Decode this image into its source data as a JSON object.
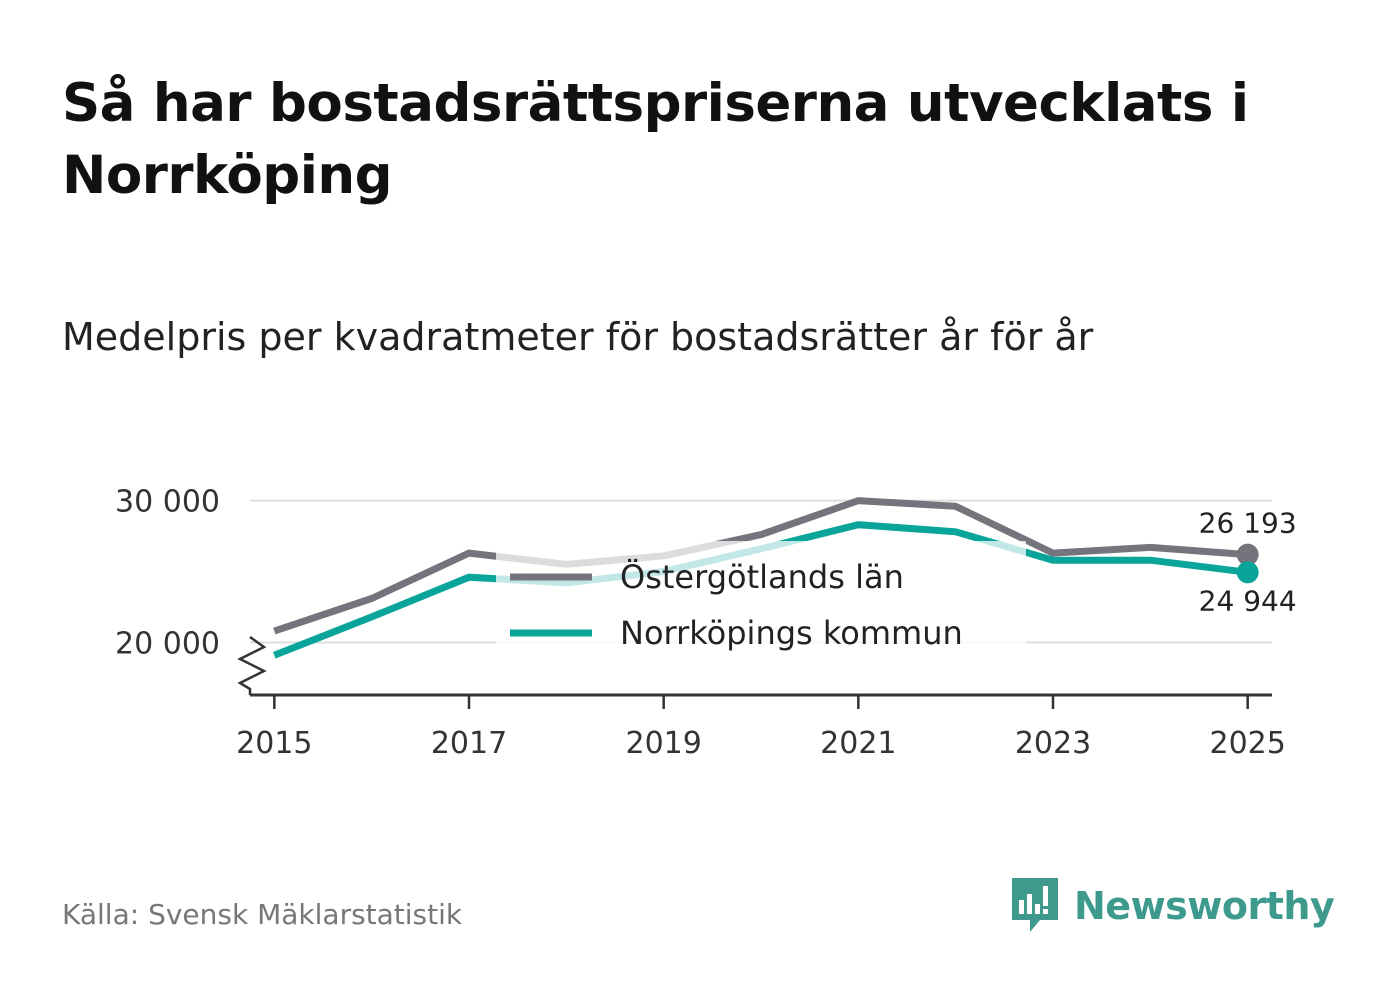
{
  "title": "Så har bostadsrättspriserna utvecklats i Norrköping",
  "subtitle": "Medelpris per kvadratmeter för bostadsrätter år för år",
  "source": "Källa: Svensk Mäklarstatistik",
  "brand": {
    "name": "Newsworthy",
    "icon": "newsworthy-logo-icon"
  },
  "colors": {
    "lan": "#75747d",
    "kommun": "#0aa59a",
    "grid": "#dddddd",
    "axis": "#333333",
    "brand": "#3d9a8d"
  },
  "chart_data": {
    "type": "line",
    "title": "Så har bostadsrättspriserna utvecklats i Norrköping",
    "subtitle": "Medelpris per kvadratmeter för bostadsrätter år för år",
    "x": [
      2015,
      2016,
      2017,
      2018,
      2019,
      2020,
      2021,
      2022,
      2023,
      2024,
      2025
    ],
    "series": [
      {
        "name": "Östergötlands län",
        "color": "#75747d",
        "values": [
          20800,
          23100,
          26300,
          25500,
          26100,
          27600,
          30000,
          29600,
          26300,
          26700,
          26193
        ]
      },
      {
        "name": "Norrköpings kommun",
        "color": "#0aa59a",
        "values": [
          19100,
          21800,
          24600,
          24200,
          25000,
          26600,
          28300,
          27800,
          25800,
          25800,
          24944
        ]
      }
    ],
    "end_labels": [
      "26 193",
      "24 944"
    ],
    "xticks": [
      "2015",
      "2017",
      "2019",
      "2021",
      "2023",
      "2025"
    ],
    "yticks": [
      "20 000",
      "30 000"
    ],
    "ylim": [
      16300,
      33000
    ],
    "xlim": [
      2014.75,
      2025.25
    ],
    "axis_break": true,
    "grid": true,
    "legend_position": "center"
  }
}
